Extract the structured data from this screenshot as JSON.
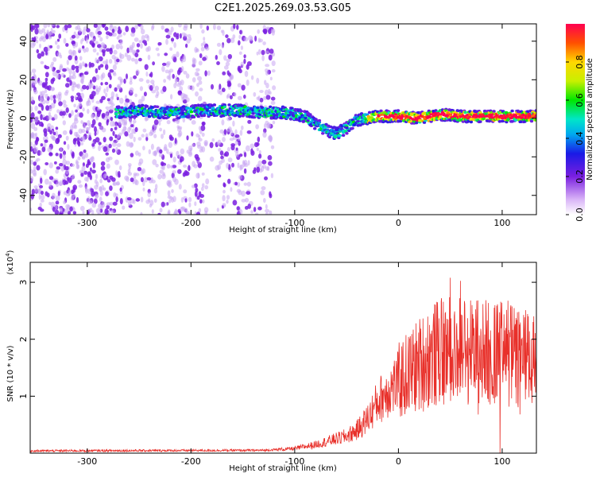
{
  "title": "C2E1.2025.269.03.53.G05",
  "colors": {
    "snr_line": "#e8302a",
    "scatter_purple": "#7a1fe0",
    "scatter_light": "#c9a6f2"
  },
  "chart_data": [
    {
      "type": "heatmap",
      "name": "spectrogram",
      "xlabel": "Height of straight line (km)",
      "ylabel": "Frequency (Hz)",
      "xlim": [
        -355,
        133
      ],
      "ylim": [
        -50,
        49
      ],
      "xticks": [
        -300,
        -200,
        -100,
        0,
        100
      ],
      "xtick_labels": [
        "-300",
        "-200",
        "-100",
        "0",
        "100"
      ],
      "yticks": [
        -40,
        -20,
        0,
        20,
        40
      ],
      "ytick_labels": [
        "-40",
        "-20",
        "0",
        "20",
        "40"
      ],
      "track": {
        "x": [
          -270,
          -250,
          -230,
          -210,
          -190,
          -170,
          -150,
          -130,
          -110,
          -100,
          -90,
          -80,
          -70,
          -60,
          -50,
          -40,
          -30,
          -20,
          0,
          20,
          40,
          60,
          80,
          100,
          120,
          133
        ],
        "freq": [
          3,
          4,
          3,
          3,
          4,
          4,
          4,
          3,
          3,
          2,
          1,
          -3,
          -6,
          -8,
          -5,
          -1,
          0,
          1,
          1,
          0,
          2,
          1,
          1,
          1,
          1,
          1
        ]
      },
      "colorbar": {
        "label": "Normalized spectral amplitude",
        "range": [
          0,
          1
        ],
        "ticks": [
          0.0,
          0.2,
          0.4,
          0.6,
          0.8
        ],
        "tick_labels": [
          "0.0",
          "0.2",
          "0.4",
          "0.6",
          "0.8"
        ]
      }
    },
    {
      "type": "line",
      "name": "snr",
      "xlabel": "Height of straight line (km)",
      "ylabel": "SNR (10 * v/v)",
      "y_multiplier": "(x10",
      "y_multiplier_exp": "4",
      "y_multiplier_close": ")",
      "xlim": [
        -355,
        133
      ],
      "ylim": [
        0,
        3.35
      ],
      "xticks": [
        -300,
        -200,
        -100,
        0,
        100
      ],
      "xtick_labels": [
        "-300",
        "-200",
        "-100",
        "0",
        "100"
      ],
      "yticks": [
        1,
        2,
        3
      ],
      "ytick_labels": [
        "1",
        "2",
        "3"
      ],
      "envelope": {
        "x": [
          -355,
          -130,
          -100,
          -80,
          -60,
          -50,
          -40,
          -30,
          -20,
          -10,
          0,
          10,
          20,
          30,
          40,
          50,
          60,
          70,
          80,
          90,
          100,
          110,
          120,
          133
        ],
        "y": [
          0.04,
          0.05,
          0.08,
          0.15,
          0.25,
          0.3,
          0.4,
          0.6,
          0.9,
          1.1,
          1.25,
          1.4,
          1.55,
          1.7,
          1.75,
          1.8,
          1.85,
          1.8,
          1.8,
          1.75,
          1.75,
          1.7,
          1.65,
          1.6
        ]
      }
    }
  ]
}
